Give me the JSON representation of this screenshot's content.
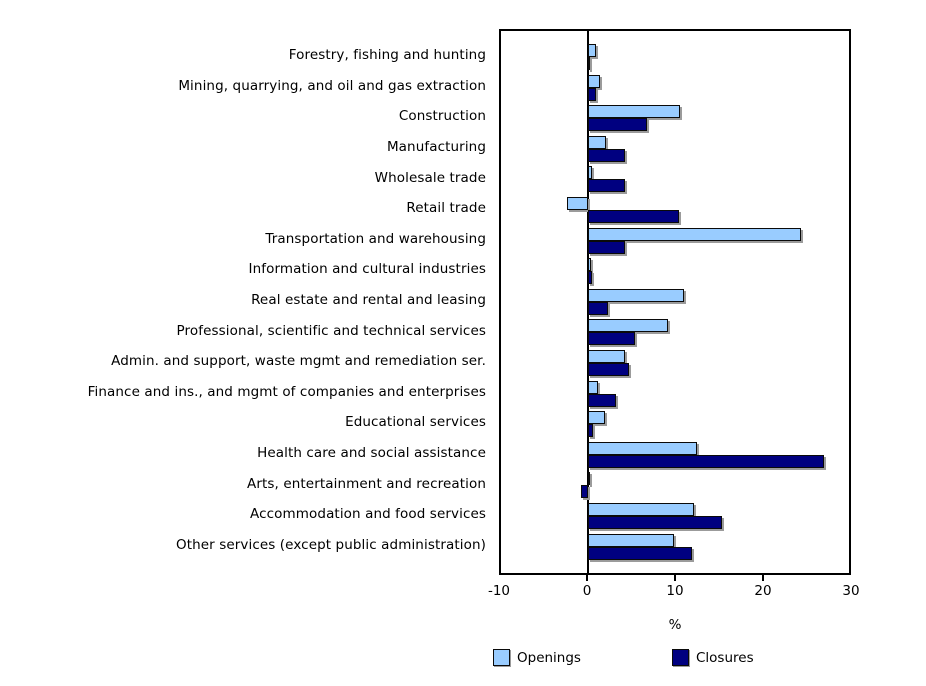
{
  "chart_data": {
    "type": "bar",
    "orientation": "horizontal",
    "title": "",
    "xlabel": "%",
    "xlim": [
      -10,
      30
    ],
    "xticks": [
      -10,
      0,
      10,
      20,
      30
    ],
    "grid": false,
    "legend_position": "bottom",
    "categories": [
      "Forestry, fishing and hunting",
      "Mining, quarrying, and oil and gas extraction",
      "Construction",
      "Manufacturing",
      "Wholesale trade",
      "Retail trade",
      "Transportation and warehousing",
      "Information and cultural industries",
      "Real estate and rental and leasing",
      "Professional, scientific and technical services",
      "Admin. and support, waste mgmt and remediation ser.",
      "Finance and ins., and mgmt of companies and enterprises",
      "Educational services",
      "Health care and social assistance",
      "Arts, entertainment and recreation",
      "Accommodation and food services",
      "Other services (except public administration)"
    ],
    "series": [
      {
        "name": "Openings",
        "color": "#99CCFF",
        "values": [
          0.9,
          1.4,
          10.6,
          2.1,
          0.5,
          -2.4,
          24.5,
          0.4,
          11.0,
          9.2,
          4.3,
          1.2,
          2.0,
          12.5,
          0.2,
          12.2,
          9.9
        ]
      },
      {
        "name": "Closures",
        "color": "#000080",
        "values": [
          0.1,
          0.9,
          6.8,
          4.3,
          4.2,
          10.5,
          4.2,
          0.5,
          2.3,
          5.4,
          4.7,
          3.2,
          0.6,
          27.1,
          -0.8,
          15.4,
          12.0
        ]
      }
    ]
  },
  "axis": {
    "tick_labels": [
      "-10",
      "0",
      "10",
      "20",
      "30"
    ],
    "unit_label": "%"
  },
  "legend": {
    "items": [
      {
        "label": "Openings",
        "color": "#99CCFF"
      },
      {
        "label": "Closures",
        "color": "#000080"
      }
    ]
  }
}
